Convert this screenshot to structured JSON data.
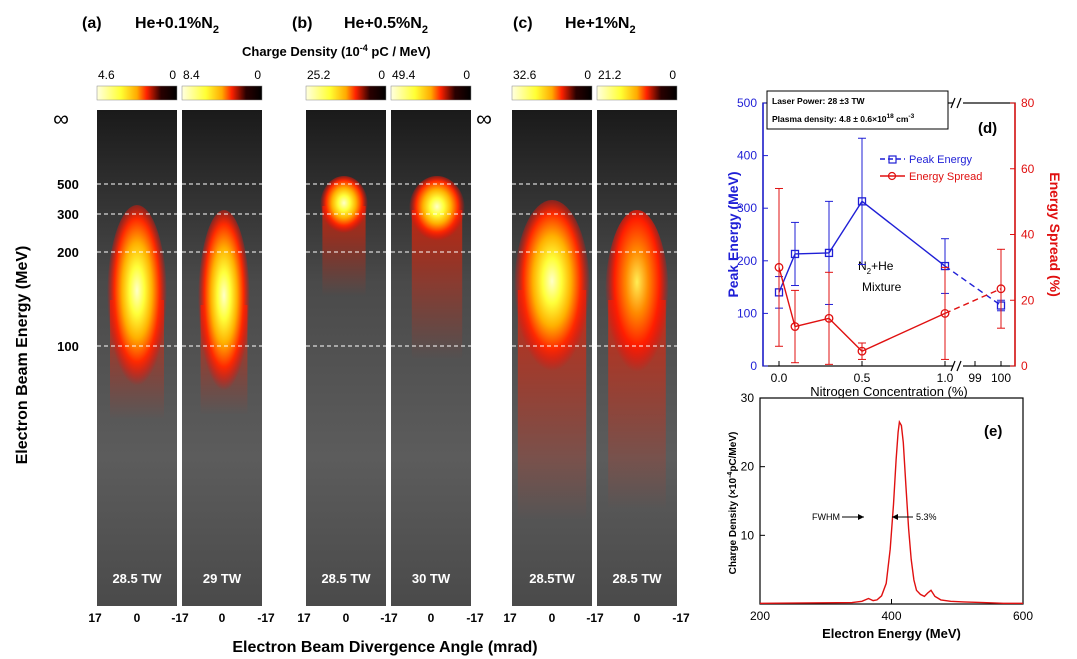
{
  "panels": {
    "a": {
      "label": "(a)",
      "gas": "He+0.1%N",
      "gas_sub": "2"
    },
    "b": {
      "label": "(b)",
      "gas": "He+0.5%N",
      "gas_sub": "2"
    },
    "c": {
      "label": "(c)",
      "gas": "He+1%N",
      "gas_sub": "2"
    }
  },
  "colorbar": {
    "title_pre": "Charge Density (10",
    "title_exp": "-4",
    "title_post": " pC / MeV)",
    "strips": [
      {
        "max": "4.6",
        "min": "0",
        "power": "28.5 TW"
      },
      {
        "max": "8.4",
        "min": "0",
        "power": "29 TW"
      },
      {
        "max": "25.2",
        "min": "0",
        "power": "28.5 TW"
      },
      {
        "max": "49.4",
        "min": "0",
        "power": "30 TW"
      },
      {
        "max": "32.6",
        "min": "0",
        "power": "28.5TW"
      },
      {
        "max": "21.2",
        "min": "0",
        "power": "28.5 TW"
      }
    ],
    "colors": [
      "#ffffe0",
      "#ffff33",
      "#ffaa00",
      "#ff2200",
      "#1a0000",
      "#000000"
    ]
  },
  "spectra": {
    "ylabel": "Electron Beam  Energy (MeV)",
    "xlabel": "Electron Beam Divergence Angle (mrad)",
    "infinity": "∞",
    "energy_ticks": [
      "500",
      "300",
      "200",
      "100"
    ],
    "angle_ticks": [
      "17",
      "0",
      "-17"
    ]
  },
  "chart_data": [
    {
      "type": "line",
      "panel_label": "(d)",
      "xlabel": "Nitrogen Concentration (%)",
      "ylabel_left": "Peak Energy (MeV)",
      "ylabel_right": "Energy Spread (%)",
      "x_ticks": [
        "0.0",
        "0.5",
        "1.0",
        "99",
        "100"
      ],
      "y_left_ticks": [
        "0",
        "100",
        "200",
        "300",
        "400",
        "500"
      ],
      "y_right_ticks": [
        "0",
        "20",
        "40",
        "60",
        "80"
      ],
      "ylim_left": [
        0,
        500
      ],
      "ylim_right": [
        0,
        80
      ],
      "x_axis_break": true,
      "annotation": {
        "line1_pre": "N",
        "line1_sub": "2",
        "line1_post": "+He",
        "line2": "Mixture"
      },
      "info_box": {
        "power": "Laser Power: 28 ±3 TW",
        "density_pre": "Plasma density: 4.8 ± 0.6×10",
        "density_exp": "18",
        "density_post": " cm",
        "density_unit_exp": "-3"
      },
      "series": [
        {
          "name": "Peak Energy",
          "axis": "left",
          "color": "#1f1fd6",
          "points": [
            {
              "x": "0.0",
              "y": 140,
              "err": 30
            },
            {
              "x": "0.1",
              "y": 213,
              "err": 60
            },
            {
              "x": "0.3",
              "y": 215,
              "err": 98
            },
            {
              "x": "0.5",
              "y": 313,
              "err": 120
            },
            {
              "x": "1.0",
              "y": 190,
              "err": 52
            },
            {
              "x": "100",
              "y": 115,
              "err": 10
            }
          ]
        },
        {
          "name": "Energy Spread",
          "axis": "right",
          "color": "#e01010",
          "points": [
            {
              "x": "0.0",
              "y": 30,
              "err": 24
            },
            {
              "x": "0.1",
              "y": 12,
              "err": 11
            },
            {
              "x": "0.3",
              "y": 14.5,
              "err": 14
            },
            {
              "x": "0.5",
              "y": 4.5,
              "err": 2.5
            },
            {
              "x": "1.0",
              "y": 16,
              "err": 14
            },
            {
              "x": "100",
              "y": 23.5,
              "err": 12
            }
          ]
        }
      ]
    },
    {
      "type": "line",
      "panel_label": "(e)",
      "xlabel": "Electron Energy (MeV)",
      "ylabel_pre": "Charge Density (×10",
      "ylabel_exp": "-4",
      "ylabel_post": "pC/MeV)",
      "xlim": [
        200,
        600
      ],
      "ylim": [
        0,
        30
      ],
      "x_ticks": [
        200,
        400,
        600
      ],
      "y_ticks": [
        10,
        20,
        30
      ],
      "annotations": {
        "fwhm": "FWHM",
        "width": "5.3%"
      },
      "series": [
        {
          "color": "#e01010",
          "x": [
            200,
            340,
            355,
            365,
            372,
            378,
            385,
            392,
            398,
            403,
            407,
            410,
            412,
            415,
            418,
            422,
            426,
            430,
            434,
            438,
            444,
            450,
            455,
            460,
            466,
            475,
            490,
            510,
            540,
            570,
            600
          ],
          "y": [
            0.1,
            0.2,
            0.4,
            0.8,
            0.5,
            0.6,
            1.2,
            3.0,
            8.0,
            14.5,
            21.0,
            25.0,
            26.5,
            26.0,
            23.5,
            17.0,
            11.0,
            6.5,
            3.5,
            2.0,
            1.4,
            1.1,
            1.6,
            2.0,
            1.1,
            0.6,
            0.4,
            0.3,
            0.2,
            0.1,
            0.1
          ]
        }
      ]
    }
  ]
}
